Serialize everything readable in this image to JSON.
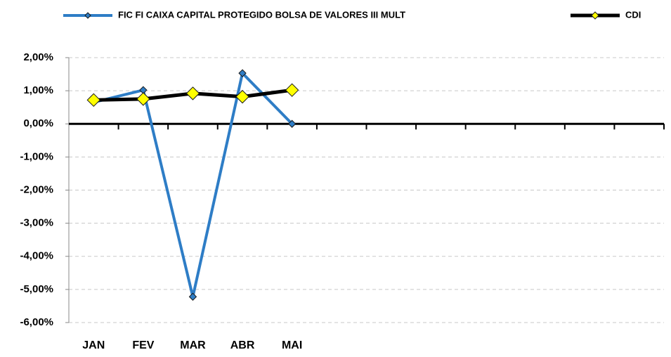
{
  "chart_data": {
    "type": "line",
    "categories": [
      "JAN",
      "FEV",
      "MAR",
      "ABR",
      "MAI",
      null,
      null,
      null,
      null,
      null,
      null,
      null
    ],
    "series": [
      {
        "name": "FIC FI CAIXA CAPITAL PROTEGIDO BOLSA DE VALORES III MULT",
        "color": "#2e7dc6",
        "marker_color": "#2e7dc6",
        "values": [
          0.65,
          1.02,
          -5.22,
          1.53,
          0.0,
          null,
          null,
          null,
          null,
          null,
          null,
          null
        ]
      },
      {
        "name": "CDI",
        "color": "#000000",
        "marker_color": "#ffff00",
        "values": [
          0.72,
          0.75,
          0.92,
          0.82,
          1.02,
          null,
          null,
          null,
          null,
          null,
          null,
          null
        ]
      }
    ],
    "ylim": [
      -6,
      2
    ],
    "yticks": [
      {
        "value": -6,
        "label": "-6,00%"
      },
      {
        "value": -5,
        "label": "-5,00%"
      },
      {
        "value": -4,
        "label": "-4,00%"
      },
      {
        "value": -3,
        "label": "-3,00%"
      },
      {
        "value": -2,
        "label": "-2,00%"
      },
      {
        "value": -1,
        "label": "-1,00%"
      },
      {
        "value": 0,
        "label": "0,00%"
      },
      {
        "value": 1,
        "label": "1,00%"
      },
      {
        "value": 2,
        "label": "2,00%"
      }
    ],
    "grid": true,
    "legend": "top"
  }
}
